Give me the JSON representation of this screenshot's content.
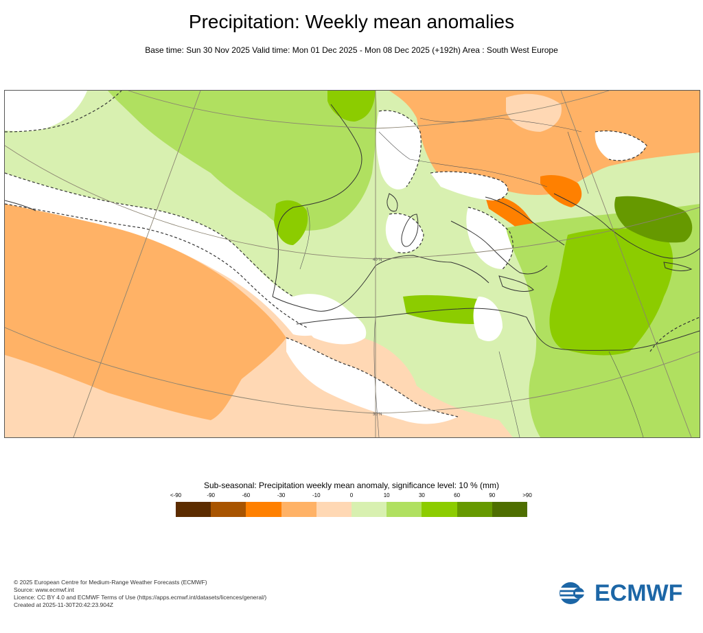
{
  "header": {
    "title": "Precipitation: Weekly mean anomalies",
    "subtitle": "Base time: Sun 30 Nov 2025 Valid time: Mon 01 Dec 2025 - Mon 08 Dec 2025 (+192h) Area : South West Europe"
  },
  "map": {
    "lat_labels": [
      "40°N",
      "30°N"
    ],
    "colors": {
      "lt-90": "#5c2c00",
      "m90_m60": "#a85400",
      "m60_m30": "#ff8000",
      "m30_m10": "#ffb266",
      "m10_0": "#ffd8b4",
      "neutral": "#ffffff",
      "0_10": "#d8f0b0",
      "10_30": "#b0e060",
      "30_60": "#8ccc00",
      "60_90": "#669900",
      "gt90": "#4e6e00",
      "coast": "#333333",
      "graticule": "#8a8270"
    }
  },
  "legend": {
    "title": "Sub-seasonal: Precipitation weekly mean anomaly, significance level: 10 % (mm)",
    "ticks": [
      "<-90",
      "-90",
      "-60",
      "-30",
      "-10",
      "0",
      "10",
      "30",
      "60",
      "90",
      ">90"
    ],
    "swatches": [
      "#5c2c00",
      "#a85400",
      "#ff8000",
      "#ffb266",
      "#ffd8b4",
      "#d8f0b0",
      "#b0e060",
      "#8ccc00",
      "#669900",
      "#4e6e00"
    ]
  },
  "footer": {
    "line1": "© 2025 European Centre for Medium-Range Weather Forecasts (ECMWF)",
    "line2": "Source: www.ecmwf.int",
    "line3": "Licence: CC BY 4.0 and ECMWF Terms of Use (https://apps.ecmwf.int/datasets/licences/general/)",
    "line4": "Created at 2025-11-30T20:42:23.904Z"
  },
  "logo": {
    "text": "ECMWF",
    "color": "#1c66a6"
  }
}
